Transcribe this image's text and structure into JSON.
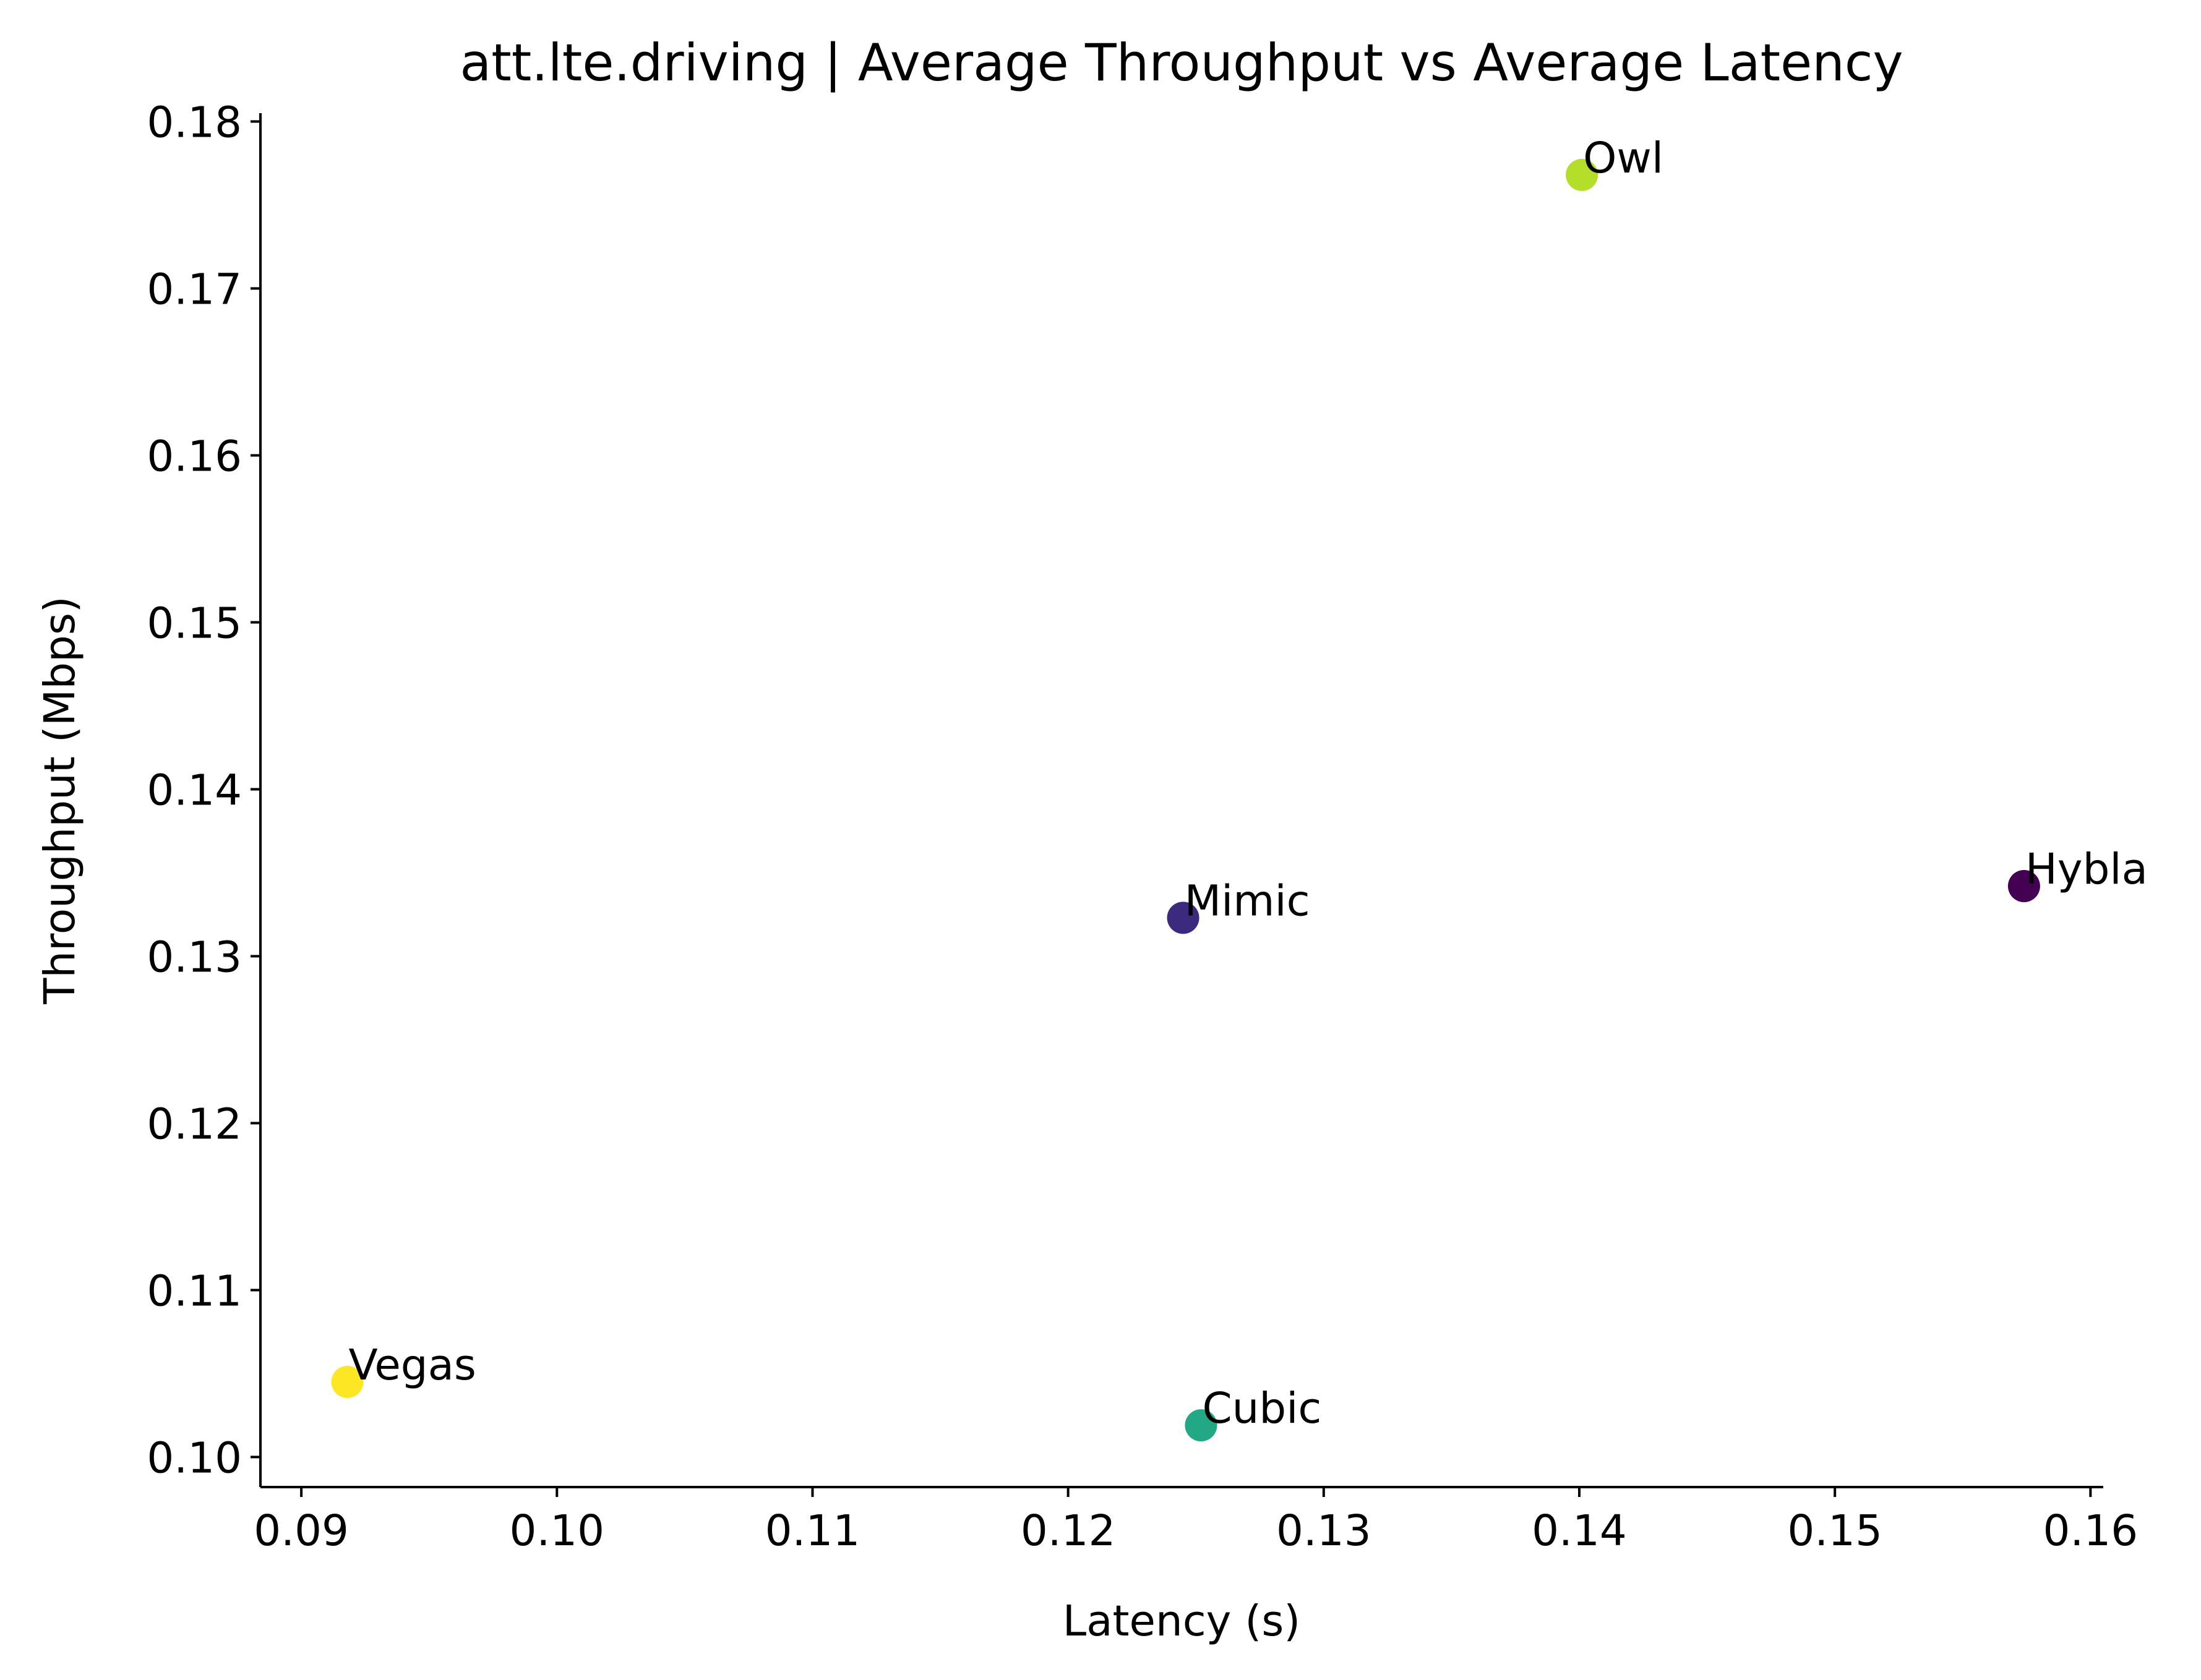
{
  "chart_data": {
    "type": "scatter",
    "title": "att.lte.driving | Average Throughput vs Average Latency",
    "xlabel": "Latency (s)",
    "ylabel": "Throughput (Mbps)",
    "xlim": [
      0.0884,
      0.1605
    ],
    "ylim": [
      0.0982,
      0.1805
    ],
    "xticks": [
      "0.09",
      "0.10",
      "0.11",
      "0.12",
      "0.13",
      "0.14",
      "0.15",
      "0.16"
    ],
    "xtick_values": [
      0.09,
      0.1,
      0.11,
      0.12,
      0.13,
      0.14,
      0.15,
      0.16
    ],
    "yticks": [
      "0.10",
      "0.11",
      "0.12",
      "0.13",
      "0.14",
      "0.15",
      "0.16",
      "0.17",
      "0.18"
    ],
    "ytick_values": [
      0.1,
      0.11,
      0.12,
      0.13,
      0.14,
      0.15,
      0.16,
      0.17,
      0.18
    ],
    "grid": false,
    "colormap": "viridis",
    "points": [
      {
        "label": "Hybla",
        "x": 0.1574,
        "y": 0.1342,
        "color": "#440154"
      },
      {
        "label": "Mimic",
        "x": 0.1245,
        "y": 0.1323,
        "color": "#3b2a7e"
      },
      {
        "label": "Cubic",
        "x": 0.1252,
        "y": 0.1019,
        "color": "#22a884"
      },
      {
        "label": "Owl",
        "x": 0.1401,
        "y": 0.1768,
        "color": "#b5de2b"
      },
      {
        "label": "Vegas",
        "x": 0.0918,
        "y": 0.1045,
        "color": "#fde725"
      }
    ]
  }
}
